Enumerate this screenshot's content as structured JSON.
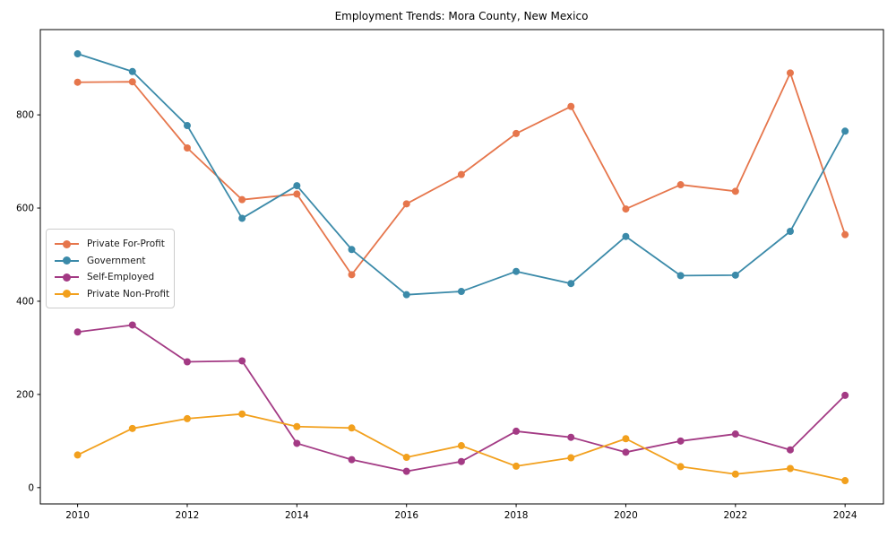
{
  "chart_data": {
    "type": "line",
    "title": "Employment Trends: Mora County, New Mexico",
    "xlabel": "",
    "ylabel": "",
    "x": [
      2010,
      2011,
      2012,
      2013,
      2014,
      2015,
      2016,
      2017,
      2018,
      2019,
      2020,
      2021,
      2022,
      2023,
      2024
    ],
    "series": [
      {
        "name": "Private For-Profit",
        "color": "#e6764c",
        "values": [
          870,
          871,
          729,
          618,
          630,
          457,
          609,
          672,
          760,
          818,
          598,
          650,
          636,
          890,
          543
        ]
      },
      {
        "name": "Government",
        "color": "#3b8aa9",
        "values": [
          931,
          893,
          777,
          578,
          648,
          511,
          414,
          421,
          464,
          438,
          539,
          455,
          456,
          550,
          765
        ]
      },
      {
        "name": "Self-Employed",
        "color": "#a33a84",
        "values": [
          334,
          349,
          270,
          272,
          95,
          60,
          35,
          56,
          121,
          108,
          76,
          100,
          115,
          81,
          198
        ]
      },
      {
        "name": "Private Non-Profit",
        "color": "#f2a01d",
        "values": [
          70,
          127,
          148,
          158,
          131,
          128,
          65,
          90,
          46,
          64,
          105,
          45,
          29,
          41,
          15
        ]
      }
    ],
    "xticks": [
      2010,
      2012,
      2014,
      2016,
      2018,
      2020,
      2022,
      2024
    ],
    "yticks": [
      0,
      200,
      400,
      600,
      800
    ],
    "xlim": [
      2009.32,
      2024.7
    ],
    "ylim": [
      -35,
      983
    ],
    "grid": false,
    "legend_position": "center-left",
    "axis_color": "#000000",
    "tick_label_color": "#000000",
    "background": "#ffffff"
  }
}
